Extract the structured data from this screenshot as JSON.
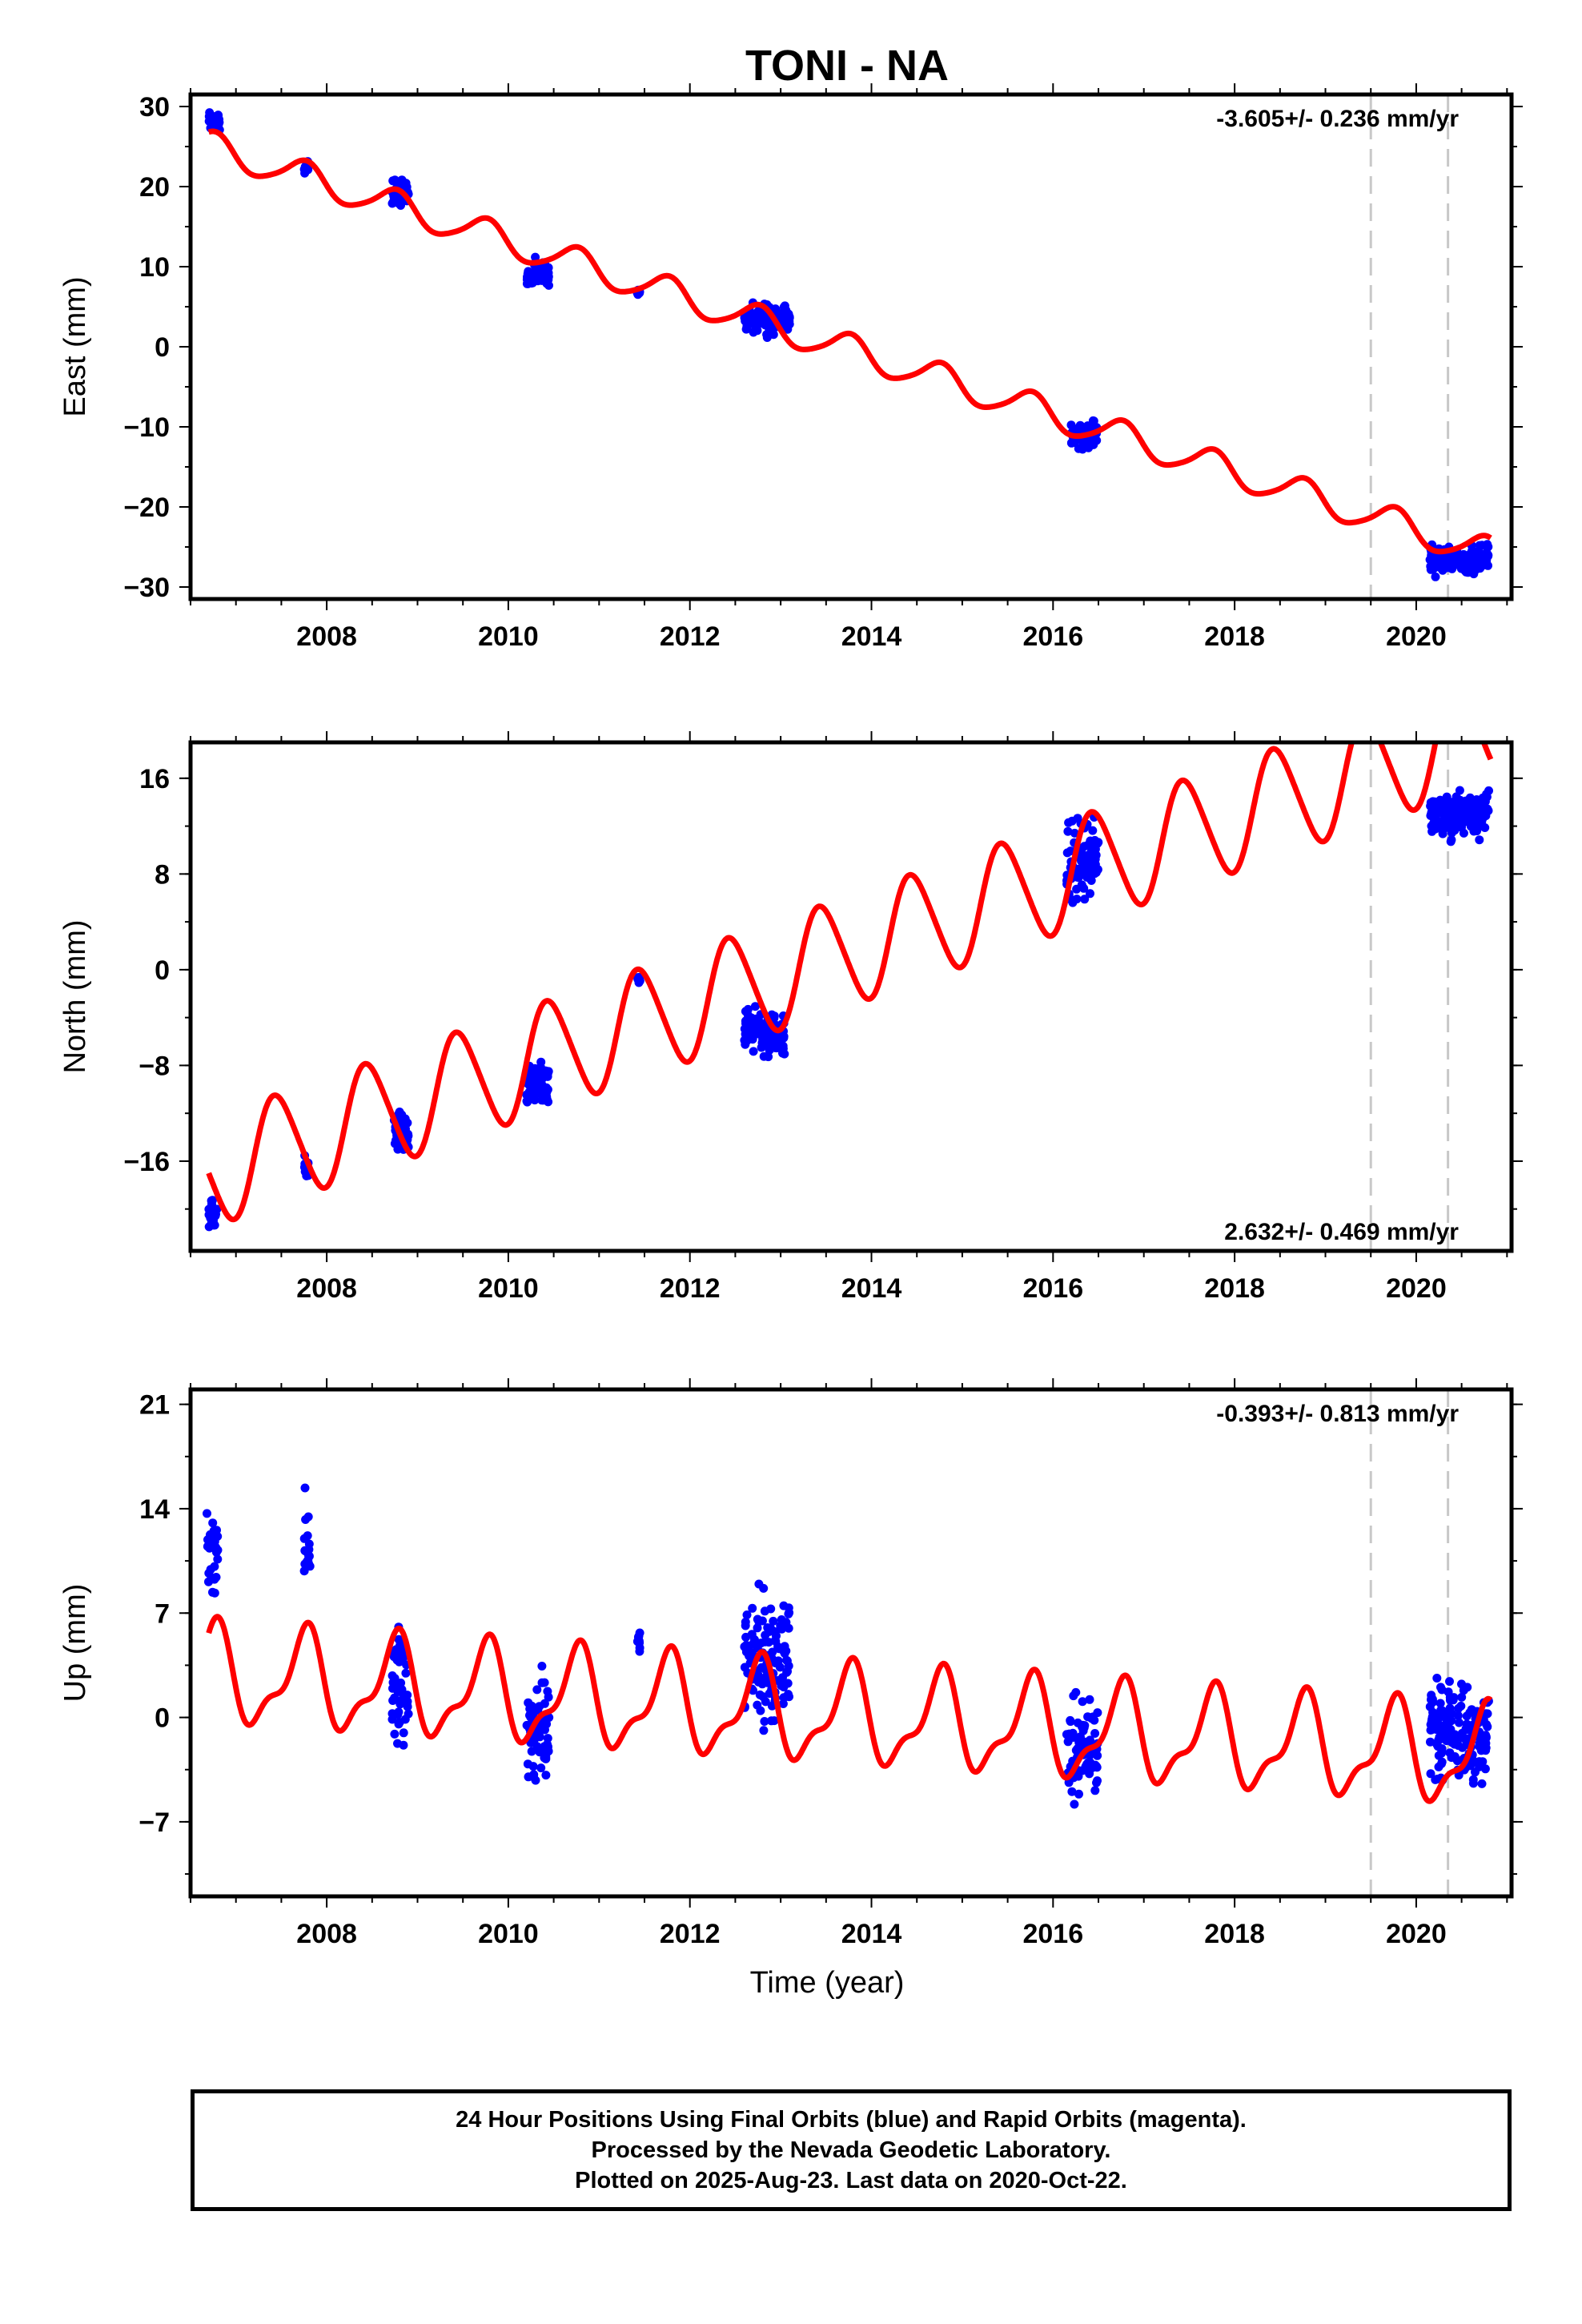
{
  "title": "TONI - NA",
  "footer": {
    "line1": "24 Hour Positions Using Final Orbits (blue) and Rapid Orbits (magenta).",
    "line2": "Processed by the Nevada Geodetic Laboratory.",
    "line3": "Plotted on 2025-Aug-23. Last data on 2020-Oct-22."
  },
  "colors": {
    "final_orbits": "#0000ff",
    "model_fit": "#ff0000",
    "equipment_change": "#c8c8c8"
  },
  "chart_data": [
    {
      "type": "scatter",
      "component": "east",
      "ylabel": "East (mm)",
      "xlabel": "",
      "xlim": [
        2006.5,
        2021.05
      ],
      "ylim": [
        -31.5,
        31.5
      ],
      "xticks": [
        2008,
        2010,
        2012,
        2014,
        2016,
        2018,
        2020
      ],
      "yticks": [
        30,
        20,
        10,
        0,
        -10,
        -20,
        -30
      ],
      "rate_text": "-3.605+/- 0.236 mm/yr",
      "rate_position": "top-right",
      "model": {
        "velocity": -3.605,
        "offset_2006_7": 25.0,
        "annual_amplitude": 1.9,
        "semiannual_amplitude": 0.3,
        "phase_years": 0.05
      },
      "step_lines": [
        2019.5,
        2020.35
      ],
      "observation_clusters": [
        {
          "start": 2006.7,
          "end": 2006.82,
          "center": 28.0,
          "spread": 2.0
        },
        {
          "start": 2007.75,
          "end": 2007.8,
          "center": 22.5,
          "spread": 1.5
        },
        {
          "start": 2008.72,
          "end": 2008.9,
          "center": 19.5,
          "spread": 2.5
        },
        {
          "start": 2010.2,
          "end": 2010.45,
          "center": 9.0,
          "spread": 2.5
        },
        {
          "start": 2011.42,
          "end": 2011.45,
          "center": 6.8,
          "spread": 0.8
        },
        {
          "start": 2012.6,
          "end": 2013.1,
          "center": 3.5,
          "spread": 2.5
        },
        {
          "start": 2016.2,
          "end": 2016.5,
          "center": -11.0,
          "spread": 2.0
        },
        {
          "start": 2020.15,
          "end": 2020.8,
          "center": -26.5,
          "spread": 2.5
        }
      ]
    },
    {
      "type": "scatter",
      "component": "north",
      "ylabel": "North (mm)",
      "xlabel": "",
      "xlim": [
        2006.5,
        2021.05
      ],
      "ylim": [
        -23.5,
        19
      ],
      "xticks": [
        2008,
        2010,
        2012,
        2014,
        2016,
        2018,
        2020
      ],
      "yticks": [
        16,
        8,
        0,
        -8,
        -16
      ],
      "rate_text": "2.632+/- 0.469 mm/yr",
      "rate_position": "bottom-right",
      "model": {
        "velocity": 2.632,
        "offset_2006_7": -17.0,
        "annual_amplitude": 4.5,
        "semiannual_amplitude": 0.5,
        "phase_years": -0.25
      },
      "step_lines": [
        2019.5,
        2020.35
      ],
      "observation_clusters": [
        {
          "start": 2006.7,
          "end": 2006.8,
          "center": -20.5,
          "spread": 1.8
        },
        {
          "start": 2007.75,
          "end": 2007.8,
          "center": -16.5,
          "spread": 1.5
        },
        {
          "start": 2008.72,
          "end": 2008.9,
          "center": -13.5,
          "spread": 2.5
        },
        {
          "start": 2010.2,
          "end": 2010.45,
          "center": -9.5,
          "spread": 2.5
        },
        {
          "start": 2011.42,
          "end": 2011.45,
          "center": -0.8,
          "spread": 0.5
        },
        {
          "start": 2012.6,
          "end": 2013.05,
          "center": -5.0,
          "spread": 3.0
        },
        {
          "start": 2016.15,
          "end": 2016.5,
          "center": 9.0,
          "spread": 4.5
        },
        {
          "start": 2020.15,
          "end": 2020.8,
          "center": 13.0,
          "spread": 3.0
        }
      ]
    },
    {
      "type": "scatter",
      "component": "up",
      "ylabel": "Up (mm)",
      "xlabel": "Time (year)",
      "xlim": [
        2006.5,
        2021.05
      ],
      "ylim": [
        -12,
        22
      ],
      "xticks": [
        2008,
        2010,
        2012,
        2014,
        2016,
        2018,
        2020
      ],
      "yticks": [
        21,
        14,
        7,
        0,
        -7
      ],
      "rate_text": "-0.393+/- 0.813 mm/yr",
      "rate_position": "top-right",
      "model": {
        "velocity": -0.393,
        "offset_2006_7": 2.8,
        "annual_amplitude": 3.0,
        "semiannual_amplitude": 1.2,
        "phase_years": 0.05
      },
      "step_lines": [
        2019.5,
        2020.35
      ],
      "observation_clusters": [
        {
          "start": 2006.68,
          "end": 2006.8,
          "center": 11.0,
          "spread": 4.5
        },
        {
          "start": 2007.75,
          "end": 2007.82,
          "center": 11.0,
          "spread": 5.0
        },
        {
          "start": 2008.72,
          "end": 2008.9,
          "center": 2.5,
          "spread": 6.0
        },
        {
          "start": 2010.2,
          "end": 2010.45,
          "center": -1.0,
          "spread": 6.5
        },
        {
          "start": 2011.42,
          "end": 2011.45,
          "center": 5.0,
          "spread": 1.5
        },
        {
          "start": 2012.6,
          "end": 2013.1,
          "center": 4.0,
          "spread": 6.0
        },
        {
          "start": 2016.15,
          "end": 2016.5,
          "center": -2.0,
          "spread": 4.5
        },
        {
          "start": 2020.15,
          "end": 2020.8,
          "center": -1.0,
          "spread": 5.0
        }
      ]
    }
  ]
}
